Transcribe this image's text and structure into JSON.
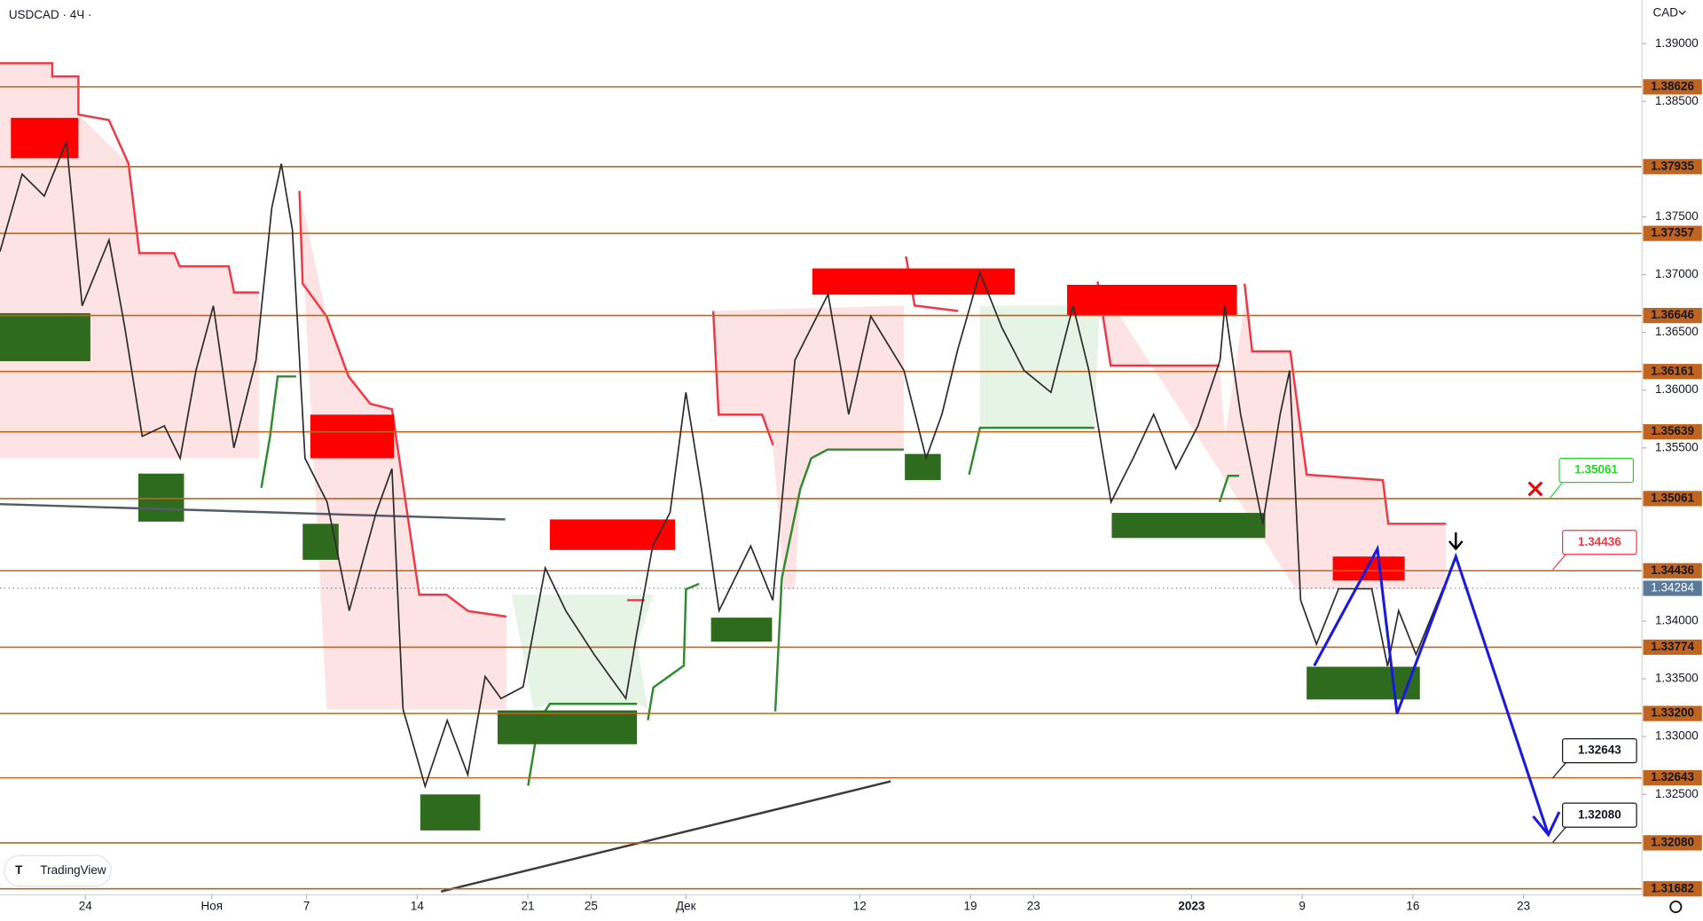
{
  "header": {
    "symbol": "USDCAD · 4Ч ·",
    "currency": "CAD",
    "watermark": "TradingView"
  },
  "chart_data": {
    "type": "line",
    "color": "#2d2d2d",
    "x": [
      -5.4,
      -4.0,
      -2.6,
      -1.2,
      -0.2,
      1.5,
      2.5,
      3.6,
      5.0,
      6.0,
      7.0,
      8.1,
      9.4,
      10.8,
      11.8,
      12.4,
      13.1,
      13.9,
      15.3,
      16.7,
      18.4,
      19.4,
      20.1,
      21.5,
      22.9,
      24.2,
      25.3,
      26.3,
      27.7,
      29.1,
      30.4,
      32.2,
      34.2,
      34.9,
      35.9,
      37.0,
      38.0,
      39.0,
      40.1,
      42.1,
      43.5,
      44.9,
      47.0,
      48.3,
      49.7,
      51.8,
      53.2,
      54.2,
      55.2,
      56.6,
      58.0,
      59.4,
      61.1,
      62.5,
      63.5,
      64.9,
      66.3,
      67.6,
      69.0,
      70.4,
      71.8,
      72.1,
      73.1,
      74.5,
      75.6,
      76.2,
      76.9,
      77.9,
      79.3,
      81.4,
      82.4,
      83.1,
      84.2,
      85.9
    ],
    "values": [
      1.372,
      1.3787,
      1.3768,
      1.3815,
      1.3673,
      1.373,
      1.3654,
      1.356,
      1.3569,
      1.3541,
      1.3617,
      1.3673,
      1.355,
      1.3626,
      1.3758,
      1.3796,
      1.3739,
      1.3541,
      1.3503,
      1.3409,
      1.3494,
      1.3532,
      1.3324,
      1.3257,
      1.3314,
      1.3267,
      1.3352,
      1.3333,
      1.3343,
      1.3446,
      1.3409,
      1.3371,
      1.3333,
      1.339,
      1.3465,
      1.3494,
      1.3598,
      1.3513,
      1.3409,
      1.3465,
      1.3418,
      1.3626,
      1.3683,
      1.3579,
      1.3664,
      1.3617,
      1.3541,
      1.3579,
      1.3635,
      1.3702,
      1.3654,
      1.3617,
      1.3598,
      1.3673,
      1.3617,
      1.3503,
      1.3541,
      1.3579,
      1.3532,
      1.3569,
      1.3626,
      1.3673,
      1.3579,
      1.3484,
      1.3579,
      1.3617,
      1.3418,
      1.338,
      1.3428,
      1.3428,
      1.3361,
      1.3409,
      1.3371,
      1.3428
    ],
    "xlim": [
      -5.4,
      98.5
    ],
    "ylim": [
      1.3163,
      1.39378
    ],
    "xticks": [
      {
        "value": 0,
        "label": "24"
      },
      {
        "value": 8,
        "label": "Ноя"
      },
      {
        "value": 14,
        "label": "7"
      },
      {
        "value": 21,
        "label": "14"
      },
      {
        "value": 28,
        "label": "21"
      },
      {
        "value": 32,
        "label": "25"
      },
      {
        "value": 38,
        "label": "Дек"
      },
      {
        "value": 49,
        "label": "12"
      },
      {
        "value": 56,
        "label": "19"
      },
      {
        "value": 60,
        "label": "23"
      },
      {
        "value": 70,
        "label": "2023"
      },
      {
        "value": 77,
        "label": "9"
      },
      {
        "value": 84,
        "label": "16"
      },
      {
        "value": 91,
        "label": "23"
      }
    ],
    "yticks": [
      {
        "value": 1.39,
        "label": "1.39000"
      },
      {
        "value": 1.385,
        "label": "1.38500"
      },
      {
        "value": 1.375,
        "label": "1.37500"
      },
      {
        "value": 1.37,
        "label": "1.37000"
      },
      {
        "value": 1.365,
        "label": "1.36500"
      },
      {
        "value": 1.36,
        "label": "1.36000"
      },
      {
        "value": 1.355,
        "label": "1.35500"
      },
      {
        "value": 1.34,
        "label": "1.34000"
      },
      {
        "value": 1.335,
        "label": "1.33500"
      },
      {
        "value": 1.33,
        "label": "1.33000"
      },
      {
        "value": 1.325,
        "label": "1.32500"
      }
    ],
    "levels": [
      1.38626,
      1.37935,
      1.37357,
      1.36646,
      1.36161,
      1.35639,
      1.35061,
      1.34436,
      1.33774,
      {
        "value": 1.332,
        "label": "1.33200"
      },
      1.32643,
      {
        "value": 1.3208,
        "label": "1.32080"
      },
      1.31682
    ],
    "level_color": "#c0641f",
    "current_price": 1.34284,
    "current_price_color": "#5b7a99",
    "annotations": [
      {
        "label": "1.35061",
        "color": "#22d822"
      },
      {
        "label": "1.34436",
        "color": "#f23645"
      },
      {
        "label": "1.32643",
        "color": "#131722"
      },
      {
        "label": "1.32080",
        "color": "#131722"
      }
    ]
  }
}
